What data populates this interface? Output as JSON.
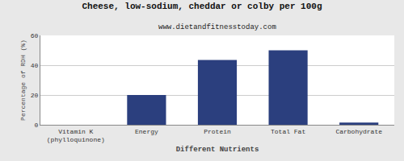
{
  "chart_data": {
    "type": "bar",
    "title": "Cheese, low-sodium, cheddar or colby per 100g",
    "subtitle": "www.dietandfitnesstoday.com",
    "xlabel": "Different Nutrients",
    "ylabel": "Percentage of RDH (%)",
    "categories": [
      "Vitamin K (phylloquinone)",
      "Energy",
      "Protein",
      "Total Fat",
      "Carbohydrate"
    ],
    "values": [
      0,
      20,
      43.5,
      50,
      1.5
    ],
    "color": "#2B3F7E",
    "ylim": [
      0,
      60
    ],
    "yticks": [
      0,
      20,
      40,
      60
    ],
    "grid": true
  }
}
